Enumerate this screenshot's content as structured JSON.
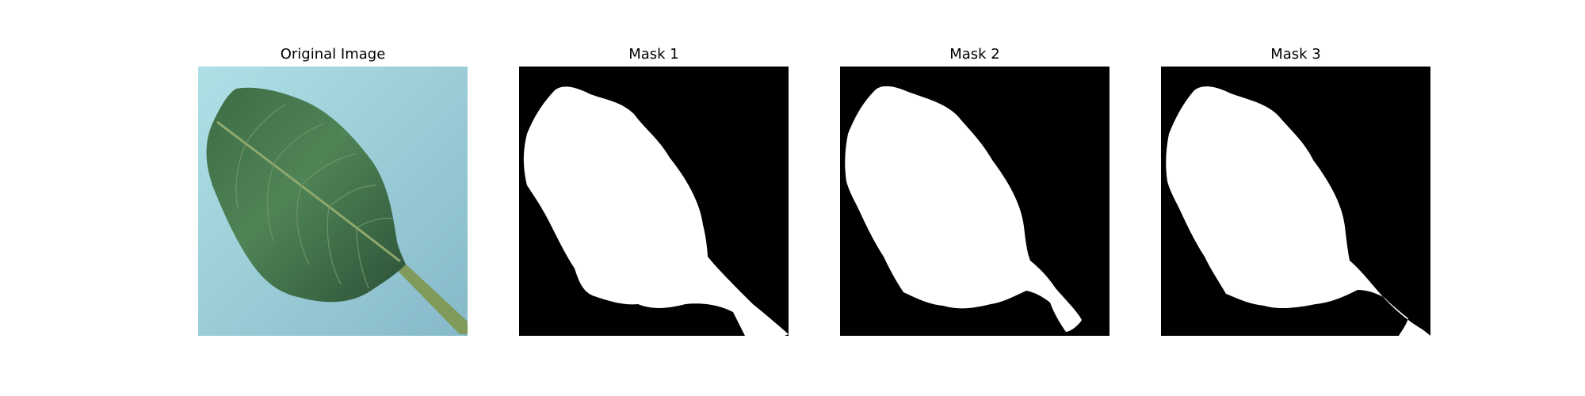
{
  "panels": [
    {
      "title": "Original Image",
      "kind": "photo",
      "subject": "green leaf on light blue background"
    },
    {
      "title": "Mask 1",
      "kind": "mask"
    },
    {
      "title": "Mask 2",
      "kind": "mask"
    },
    {
      "title": "Mask 3",
      "kind": "mask"
    }
  ],
  "colors": {
    "background_photo": "#9fd0d8",
    "leaf_dark": "#2f5a3c",
    "leaf_mid": "#4a7d52",
    "vein": "#8aa56a",
    "mask_bg": "#000000",
    "mask_fg": "#ffffff"
  }
}
